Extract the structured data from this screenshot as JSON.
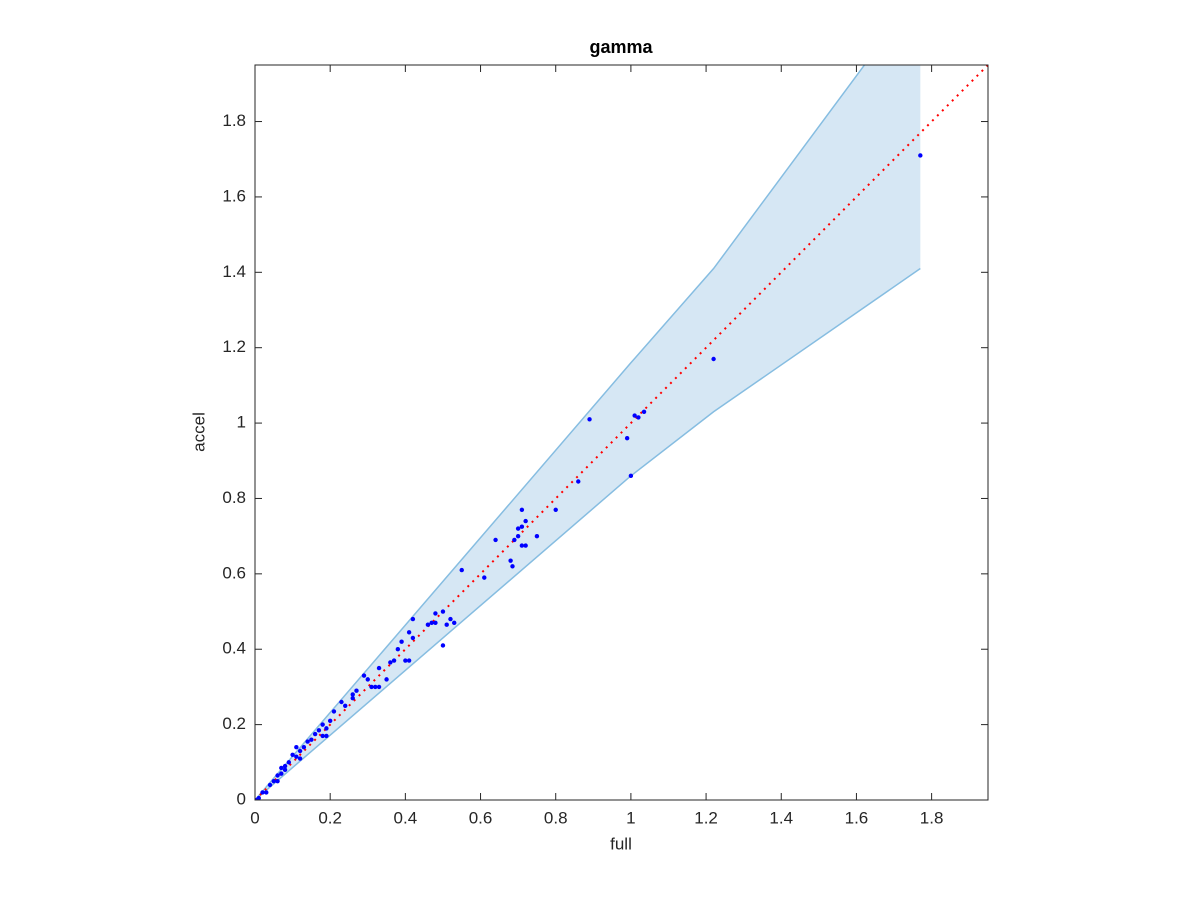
{
  "chart_data": {
    "type": "scatter",
    "title": "gamma",
    "x_label": "full",
    "y_label": "accel",
    "xlim": [
      0,
      1.95
    ],
    "ylim": [
      0,
      1.95
    ],
    "xticks": [
      0,
      0.2,
      0.4,
      0.6,
      0.8,
      1,
      1.2,
      1.4,
      1.6,
      1.8
    ],
    "yticks": [
      0,
      0.2,
      0.4,
      0.6,
      0.8,
      1,
      1.2,
      1.4,
      1.6,
      1.8
    ],
    "grid": false,
    "band": {
      "x": [
        0,
        0.5,
        1,
        1.22,
        1.77
      ],
      "upper": [
        0,
        0.58,
        1.16,
        1.41,
        2.15
      ],
      "lower": [
        0,
        0.43,
        0.86,
        1.03,
        1.41
      ],
      "color": "#86bde1",
      "fill": "#d6e7f4"
    },
    "reference_line": {
      "x": [
        0,
        1.95
      ],
      "values": [
        0,
        1.95
      ],
      "color": "#ff0000"
    },
    "points": {
      "color": "#0000ff",
      "x": [
        0.89,
        0.99,
        1.01,
        1.02,
        1.035,
        1.0,
        1.22,
        1.77,
        0.86,
        0.8,
        0.75,
        0.71,
        0.72,
        0.7,
        0.71,
        0.69,
        0.7,
        0.68,
        0.685,
        0.71,
        0.72,
        0.64,
        0.61,
        0.55,
        0.52,
        0.53,
        0.51,
        0.5,
        0.5,
        0.48,
        0.47,
        0.46,
        0.48,
        0.42,
        0.41,
        0.42,
        0.4,
        0.41,
        0.39,
        0.38,
        0.37,
        0.36,
        0.35,
        0.33,
        0.33,
        0.32,
        0.31,
        0.3,
        0.29,
        0.27,
        0.26,
        0.26,
        0.24,
        0.23,
        0.21,
        0.2,
        0.19,
        0.18,
        0.19,
        0.18,
        0.17,
        0.16,
        0.15,
        0.14,
        0.13,
        0.12,
        0.11,
        0.11,
        0.12,
        0.1,
        0.09,
        0.08,
        0.08,
        0.07,
        0.07,
        0.06,
        0.06,
        0.05,
        0.04,
        0.03,
        0.02,
        0.01,
        0.005
      ],
      "values": [
        1.01,
        0.96,
        1.02,
        1.015,
        1.03,
        0.86,
        1.17,
        1.71,
        0.845,
        0.77,
        0.7,
        0.77,
        0.74,
        0.72,
        0.725,
        0.69,
        0.7,
        0.635,
        0.62,
        0.675,
        0.675,
        0.69,
        0.59,
        0.61,
        0.48,
        0.47,
        0.465,
        0.41,
        0.5,
        0.495,
        0.47,
        0.465,
        0.47,
        0.48,
        0.445,
        0.43,
        0.37,
        0.37,
        0.42,
        0.4,
        0.37,
        0.365,
        0.32,
        0.35,
        0.3,
        0.3,
        0.3,
        0.32,
        0.33,
        0.29,
        0.28,
        0.27,
        0.25,
        0.26,
        0.235,
        0.21,
        0.17,
        0.17,
        0.19,
        0.2,
        0.185,
        0.175,
        0.16,
        0.155,
        0.14,
        0.13,
        0.14,
        0.115,
        0.11,
        0.12,
        0.1,
        0.09,
        0.08,
        0.085,
        0.07,
        0.065,
        0.05,
        0.05,
        0.04,
        0.02,
        0.02,
        0.005,
        0.0
      ]
    }
  }
}
